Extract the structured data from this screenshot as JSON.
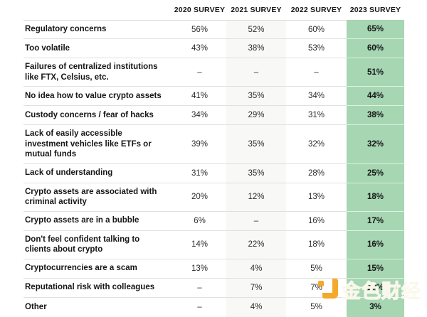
{
  "chart_data": {
    "type": "table",
    "columns": [
      "2020 SURVEY",
      "2021 SURVEY",
      "2022 SURVEY",
      "2023 SURVEY"
    ],
    "highlight_column": "2023 SURVEY",
    "missing_value_symbol": "–",
    "rows": [
      {
        "label": "Regulatory concerns",
        "values": [
          "56%",
          "52%",
          "60%",
          "65%"
        ]
      },
      {
        "label": "Too volatile",
        "values": [
          "43%",
          "38%",
          "53%",
          "60%"
        ]
      },
      {
        "label": "Failures of centralized institutions like FTX, Celsius, etc.",
        "values": [
          "–",
          "–",
          "–",
          "51%"
        ]
      },
      {
        "label": "No idea how to value crypto assets",
        "values": [
          "41%",
          "35%",
          "34%",
          "44%"
        ]
      },
      {
        "label": "Custody concerns / fear of hacks",
        "values": [
          "34%",
          "29%",
          "31%",
          "38%"
        ]
      },
      {
        "label": "Lack of easily accessible investment vehicles like ETFs or mutual funds",
        "values": [
          "39%",
          "35%",
          "32%",
          "32%"
        ]
      },
      {
        "label": "Lack of understanding",
        "values": [
          "31%",
          "35%",
          "28%",
          "25%"
        ]
      },
      {
        "label": "Crypto assets are associated with criminal activity",
        "values": [
          "20%",
          "12%",
          "13%",
          "18%"
        ]
      },
      {
        "label": "Crypto assets are in a bubble",
        "values": [
          "6%",
          "–",
          "16%",
          "17%"
        ]
      },
      {
        "label": "Don't feel confident talking to clients about crypto",
        "values": [
          "14%",
          "22%",
          "18%",
          "16%"
        ]
      },
      {
        "label": "Cryptocurrencies are a scam",
        "values": [
          "13%",
          "4%",
          "5%",
          "15%"
        ]
      },
      {
        "label": "Reputational risk with colleagues",
        "values": [
          "–",
          "7%",
          "7%",
          "10%"
        ]
      },
      {
        "label": "Other",
        "values": [
          "–",
          "4%",
          "5%",
          "3%"
        ]
      }
    ]
  },
  "watermark": {
    "text": "金色财经"
  },
  "colors": {
    "highlight_green": "#a6d6b2",
    "shaded_column": "#f8f9f6",
    "divider": "#e0e0df",
    "watermark_orange": "#f5a41f"
  }
}
